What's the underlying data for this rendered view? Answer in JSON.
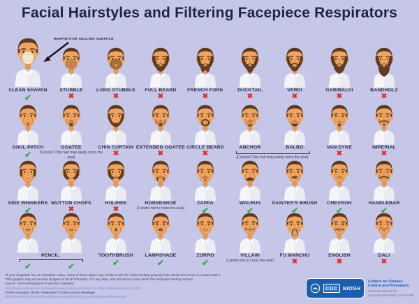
{
  "title": "Facial Hairstyles and Filtering Facepiece Respirators",
  "annotation": "RESPIRATOR SEALING SURFACE",
  "marks": {
    "check": "✔",
    "x": "✖"
  },
  "colors": {
    "background": "#c6c6e8",
    "title": "#1b2742",
    "label": "#2b2b45",
    "check_green": "#3aab4a",
    "x_red": "#e03028",
    "badge_blue": "#1a5fae",
    "link_blue": "#7d88d8"
  },
  "rows": [
    {
      "items": [
        {
          "label": "CLEAN SHAVEN",
          "mark": "check",
          "variant": "clean",
          "big": true
        },
        {
          "label": "STUBBLE",
          "mark": "x",
          "variant": "stubble"
        },
        {
          "label": "LONG STUBBLE",
          "mark": "x",
          "variant": "long-stubble"
        },
        {
          "label": "FULL BEARD",
          "mark": "x",
          "variant": "full-beard"
        },
        {
          "label": "FRENCH FORK",
          "mark": "x",
          "variant": "french-fork"
        },
        {
          "label": "DUCKTAIL",
          "mark": "x",
          "variant": "ducktail"
        },
        {
          "label": "VERDI",
          "mark": "x",
          "variant": "verdi"
        },
        {
          "label": "GARIBALDI",
          "mark": "x",
          "variant": "garibaldi"
        },
        {
          "label": "BANDHOLZ",
          "mark": "x",
          "variant": "bandholz"
        }
      ]
    },
    {
      "items": [
        {
          "label": "SOUL PATCH",
          "mark": "check",
          "variant": "soul-patch"
        },
        {
          "label": "GOATEE",
          "mark": "none",
          "caption": "(Careful! Chin hair may easily cross the seal)",
          "variant": "goatee"
        },
        {
          "label": "CHIN CURTAIN",
          "mark": "x",
          "variant": "chin-curtain"
        },
        {
          "label": "EXTENDED GOATEE",
          "mark": "x",
          "variant": "extended-goatee"
        },
        {
          "label": "CIRCLE BEARD",
          "mark": "x",
          "variant": "circle-beard"
        },
        {
          "label": "ANCHOR",
          "mark": "none",
          "variant": "anchor"
        },
        {
          "label": "BALBO",
          "mark": "none",
          "variant": "balbo"
        },
        {
          "label": "VAN DYKE",
          "mark": "x",
          "variant": "van-dyke"
        },
        {
          "label": "IMPERIAL",
          "mark": "x",
          "variant": "imperial"
        }
      ],
      "shared_caption": {
        "text": "(Careful! Chin hair may easily cross the seal)",
        "cols": [
          5,
          6
        ]
      }
    },
    {
      "items": [
        {
          "label": "SIDE WHISKERS",
          "mark": "check",
          "variant": "side-whiskers"
        },
        {
          "label": "MUTTON CHOPS",
          "mark": "x",
          "variant": "mutton-chops"
        },
        {
          "label": "HULIHEE",
          "mark": "x",
          "variant": "hulihee"
        },
        {
          "label": "HORSESHOE",
          "mark": "none",
          "caption": "(Careful not to cross the seal)",
          "variant": "horseshoe"
        },
        {
          "label": "ZAPPA",
          "mark": "check",
          "variant": "zappa"
        },
        {
          "label": "WALRUS",
          "mark": "check",
          "variant": "walrus"
        },
        {
          "label": "PAINTER'S BRUSH",
          "mark": "check",
          "variant": "painters-brush"
        },
        {
          "label": "CHEVRON",
          "mark": "check",
          "variant": "chevron"
        },
        {
          "label": "HANDLEBAR",
          "mark": "check",
          "variant": "handlebar"
        }
      ]
    },
    {
      "items": [
        {
          "label": "PENCIL",
          "span": 2,
          "marks": [
            "check",
            "check"
          ],
          "variant": "pencil"
        },
        {
          "label": "TOOTHBRUSH",
          "mark": "check",
          "variant": "toothbrush"
        },
        {
          "label": "LAMPSHADE",
          "mark": "check",
          "variant": "lampshade"
        },
        {
          "label": "ZORRO",
          "mark": "check",
          "variant": "zorro"
        },
        {
          "label": "VILLAIN",
          "mark": "none",
          "caption": "(Careful not to cross the seal)",
          "variant": "villain"
        },
        {
          "label": "FU MANCHU",
          "mark": "x",
          "variant": "fu-manchu"
        },
        {
          "label": "ENGLISH",
          "mark": "x",
          "variant": "english"
        },
        {
          "label": "DALI",
          "mark": "x",
          "variant": "dali"
        }
      ]
    }
  ],
  "footer": {
    "notes": [
      "*If your respirator has an exhalation valve, some of these styles may interfere with the valve working properly if the facial hair comes in contact with it.",
      "*This graphic may not include all types of facial hairstyles. For any style, hair should not cross under the respirator sealing surface."
    ],
    "source_label": "Source: OSHA Respiratory Protection Standard",
    "source_url": "https://www.osha.gov/pls/oshaweb/owadisp.show_document?p_table=standards&p_id=12716",
    "further_label": "Further Reading: NIOSH Respirator Trusted-Source Webpage",
    "further_url": "https://www.cdc.gov/niosh/npptl/topics/respirators/disp_part/respsource3filtered.html",
    "logos": {
      "cdc": "CDC",
      "niosh": "NIOSH"
    },
    "org_primary": "Centers for Disease Control and Prevention",
    "org_secondary": "National Institute for Occupational Safety and Health"
  }
}
